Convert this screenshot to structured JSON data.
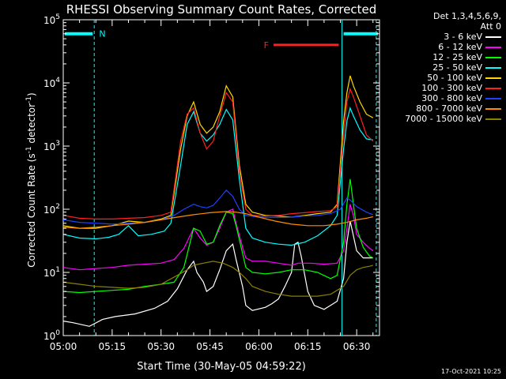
{
  "chart_data": {
    "type": "line",
    "title": "RHESSI Observing Summary Count Rates, Corrected",
    "xlabel": "Start Time (30-May-05 04:59:22)",
    "ylabel": "Corrected Count Rate (s-1 detector-1)",
    "ylabel_parts": {
      "base": "Corrected Count Rate (s",
      "e1": "-1",
      "mid": " detector",
      "e2": "-1",
      "end": ")"
    },
    "y_scale": "log",
    "ylim": [
      1,
      100000
    ],
    "y_ticks": [
      {
        "value": 1,
        "base": "10",
        "exp": "0"
      },
      {
        "value": 10,
        "base": "10",
        "exp": "1"
      },
      {
        "value": 100,
        "base": "10",
        "exp": "2"
      },
      {
        "value": 1000,
        "base": "10",
        "exp": "3"
      },
      {
        "value": 10000,
        "base": "10",
        "exp": "4"
      },
      {
        "value": 100000,
        "base": "10",
        "exp": "5"
      }
    ],
    "xlim_minutes": [
      0,
      97
    ],
    "x_ticks": [
      {
        "label": "05:00",
        "min": 0
      },
      {
        "label": "05:15",
        "min": 15
      },
      {
        "label": "05:30",
        "min": 30
      },
      {
        "label": "05:45",
        "min": 45
      },
      {
        "label": "06:00",
        "min": 60
      },
      {
        "label": "06:15",
        "min": 75
      },
      {
        "label": "06:30",
        "min": 90
      }
    ],
    "legend_header": [
      "Det 1,3,4,5,6,9,",
      "Att 0"
    ],
    "series": [
      {
        "name": "3 - 6 keV",
        "color": "#ffffff",
        "points": [
          [
            0,
            1.7
          ],
          [
            3,
            1.6
          ],
          [
            8,
            1.4
          ],
          [
            12,
            1.8
          ],
          [
            16,
            2.0
          ],
          [
            22,
            2.2
          ],
          [
            28,
            2.7
          ],
          [
            32,
            3.5
          ],
          [
            35,
            5.5
          ],
          [
            38,
            11
          ],
          [
            40,
            15
          ],
          [
            41,
            10
          ],
          [
            43,
            7
          ],
          [
            44,
            5
          ],
          [
            46,
            6
          ],
          [
            48,
            11
          ],
          [
            50,
            22
          ],
          [
            52,
            28
          ],
          [
            53,
            16
          ],
          [
            55,
            6
          ],
          [
            56,
            3
          ],
          [
            58,
            2.5
          ],
          [
            62,
            2.8
          ],
          [
            64,
            3.2
          ],
          [
            66,
            3.8
          ],
          [
            68,
            6
          ],
          [
            70,
            10
          ],
          [
            71,
            28
          ],
          [
            72,
            30
          ],
          [
            73,
            18
          ],
          [
            75,
            5
          ],
          [
            77,
            3
          ],
          [
            80,
            2.6
          ],
          [
            82,
            3
          ],
          [
            84,
            3.5
          ],
          [
            86,
            8
          ],
          [
            87,
            30
          ],
          [
            88,
            65
          ],
          [
            89,
            38
          ],
          [
            90,
            22
          ],
          [
            92,
            17
          ],
          [
            94,
            17
          ],
          [
            95,
            17
          ]
        ]
      },
      {
        "name": "6 - 12 keV",
        "color": "#ff00ff",
        "points": [
          [
            0,
            12
          ],
          [
            5,
            11
          ],
          [
            10,
            11.5
          ],
          [
            15,
            12
          ],
          [
            20,
            13
          ],
          [
            25,
            13.5
          ],
          [
            30,
            14
          ],
          [
            34,
            16
          ],
          [
            37,
            24
          ],
          [
            40,
            50
          ],
          [
            42,
            35
          ],
          [
            44,
            27
          ],
          [
            46,
            30
          ],
          [
            48,
            50
          ],
          [
            50,
            90
          ],
          [
            52,
            100
          ],
          [
            53,
            60
          ],
          [
            55,
            25
          ],
          [
            56,
            17
          ],
          [
            58,
            15
          ],
          [
            62,
            15
          ],
          [
            66,
            14
          ],
          [
            70,
            13
          ],
          [
            72,
            14
          ],
          [
            76,
            14
          ],
          [
            80,
            13.5
          ],
          [
            84,
            14
          ],
          [
            86,
            22
          ],
          [
            87,
            50
          ],
          [
            88,
            120
          ],
          [
            89,
            80
          ],
          [
            90,
            40
          ],
          [
            92,
            30
          ],
          [
            94,
            24
          ],
          [
            95,
            22
          ]
        ]
      },
      {
        "name": "12 - 25 keV",
        "color": "#00ff00",
        "points": [
          [
            0,
            5
          ],
          [
            5,
            4.8
          ],
          [
            10,
            5
          ],
          [
            15,
            5.2
          ],
          [
            20,
            5.4
          ],
          [
            25,
            6
          ],
          [
            30,
            6.5
          ],
          [
            34,
            7
          ],
          [
            37,
            12
          ],
          [
            40,
            50
          ],
          [
            42,
            45
          ],
          [
            44,
            28
          ],
          [
            46,
            30
          ],
          [
            48,
            55
          ],
          [
            50,
            90
          ],
          [
            52,
            85
          ],
          [
            53,
            55
          ],
          [
            55,
            20
          ],
          [
            56,
            12
          ],
          [
            58,
            10
          ],
          [
            62,
            9.5
          ],
          [
            66,
            10
          ],
          [
            70,
            11
          ],
          [
            74,
            11
          ],
          [
            78,
            10
          ],
          [
            82,
            8
          ],
          [
            84,
            9
          ],
          [
            86,
            30
          ],
          [
            87,
            120
          ],
          [
            88,
            300
          ],
          [
            89,
            120
          ],
          [
            90,
            50
          ],
          [
            92,
            25
          ],
          [
            94,
            18
          ],
          [
            95,
            17
          ]
        ]
      },
      {
        "name": "25 - 50 keV",
        "color": "#00ffff",
        "points": [
          [
            0,
            40
          ],
          [
            5,
            35
          ],
          [
            10,
            34
          ],
          [
            14,
            36
          ],
          [
            17,
            40
          ],
          [
            20,
            55
          ],
          [
            23,
            38
          ],
          [
            27,
            40
          ],
          [
            31,
            45
          ],
          [
            33,
            60
          ],
          [
            36,
            500
          ],
          [
            38,
            2200
          ],
          [
            40,
            3500
          ],
          [
            42,
            1600
          ],
          [
            44,
            1200
          ],
          [
            46,
            1500
          ],
          [
            48,
            2200
          ],
          [
            50,
            3800
          ],
          [
            52,
            2600
          ],
          [
            54,
            300
          ],
          [
            56,
            50
          ],
          [
            58,
            35
          ],
          [
            62,
            30
          ],
          [
            66,
            28
          ],
          [
            70,
            27
          ],
          [
            74,
            30
          ],
          [
            78,
            38
          ],
          [
            82,
            55
          ],
          [
            84,
            80
          ],
          [
            86,
            900
          ],
          [
            87,
            2500
          ],
          [
            88,
            4000
          ],
          [
            89,
            3000
          ],
          [
            91,
            1800
          ],
          [
            93,
            1300
          ],
          [
            95,
            1250
          ]
        ]
      },
      {
        "name": "50 - 100 keV",
        "color": "#ffd700",
        "points": [
          [
            0,
            55
          ],
          [
            5,
            50
          ],
          [
            10,
            50
          ],
          [
            15,
            55
          ],
          [
            20,
            65
          ],
          [
            25,
            62
          ],
          [
            30,
            70
          ],
          [
            33,
            80
          ],
          [
            36,
            900
          ],
          [
            38,
            3000
          ],
          [
            40,
            5000
          ],
          [
            42,
            2200
          ],
          [
            44,
            1600
          ],
          [
            46,
            2000
          ],
          [
            48,
            3500
          ],
          [
            50,
            9000
          ],
          [
            52,
            6000
          ],
          [
            54,
            500
          ],
          [
            56,
            120
          ],
          [
            58,
            90
          ],
          [
            62,
            80
          ],
          [
            66,
            78
          ],
          [
            70,
            75
          ],
          [
            74,
            80
          ],
          [
            78,
            85
          ],
          [
            82,
            90
          ],
          [
            84,
            120
          ],
          [
            86,
            2500
          ],
          [
            87,
            7000
          ],
          [
            88,
            13000
          ],
          [
            89,
            9000
          ],
          [
            91,
            5000
          ],
          [
            93,
            3200
          ],
          [
            95,
            2800
          ]
        ]
      },
      {
        "name": "100 - 300 keV",
        "color": "#ff2020",
        "points": [
          [
            0,
            80
          ],
          [
            5,
            72
          ],
          [
            10,
            70
          ],
          [
            15,
            70
          ],
          [
            20,
            72
          ],
          [
            25,
            74
          ],
          [
            30,
            80
          ],
          [
            33,
            90
          ],
          [
            36,
            1200
          ],
          [
            38,
            3200
          ],
          [
            40,
            4000
          ],
          [
            42,
            1600
          ],
          [
            44,
            900
          ],
          [
            46,
            1200
          ],
          [
            48,
            3000
          ],
          [
            50,
            7000
          ],
          [
            52,
            5000
          ],
          [
            54,
            400
          ],
          [
            56,
            100
          ],
          [
            58,
            80
          ],
          [
            62,
            78
          ],
          [
            66,
            80
          ],
          [
            70,
            85
          ],
          [
            74,
            88
          ],
          [
            78,
            92
          ],
          [
            82,
            95
          ],
          [
            84,
            110
          ],
          [
            86,
            1500
          ],
          [
            87,
            5000
          ],
          [
            88,
            8000
          ],
          [
            89,
            6000
          ],
          [
            91,
            3000
          ],
          [
            93,
            1500
          ],
          [
            95,
            1200
          ]
        ]
      },
      {
        "name": "300 - 800 keV",
        "color": "#2040ff",
        "points": [
          [
            0,
            68
          ],
          [
            5,
            62
          ],
          [
            10,
            60
          ],
          [
            15,
            58
          ],
          [
            20,
            60
          ],
          [
            25,
            62
          ],
          [
            30,
            68
          ],
          [
            34,
            80
          ],
          [
            37,
            100
          ],
          [
            40,
            120
          ],
          [
            42,
            110
          ],
          [
            44,
            105
          ],
          [
            46,
            115
          ],
          [
            48,
            150
          ],
          [
            50,
            200
          ],
          [
            52,
            160
          ],
          [
            54,
            100
          ],
          [
            56,
            80
          ],
          [
            60,
            75
          ],
          [
            66,
            74
          ],
          [
            70,
            75
          ],
          [
            74,
            78
          ],
          [
            78,
            80
          ],
          [
            82,
            85
          ],
          [
            85,
            100
          ],
          [
            87,
            150
          ],
          [
            88,
            140
          ],
          [
            90,
            110
          ],
          [
            93,
            90
          ],
          [
            95,
            82
          ]
        ]
      },
      {
        "name": "800 - 7000 keV",
        "color": "#ff8c00",
        "points": [
          [
            0,
            52
          ],
          [
            5,
            50
          ],
          [
            10,
            52
          ],
          [
            15,
            55
          ],
          [
            20,
            58
          ],
          [
            25,
            62
          ],
          [
            30,
            68
          ],
          [
            35,
            75
          ],
          [
            40,
            82
          ],
          [
            45,
            88
          ],
          [
            50,
            92
          ],
          [
            53,
            90
          ],
          [
            56,
            85
          ],
          [
            60,
            75
          ],
          [
            65,
            65
          ],
          [
            70,
            58
          ],
          [
            75,
            55
          ],
          [
            80,
            55
          ],
          [
            84,
            58
          ],
          [
            87,
            62
          ],
          [
            90,
            68
          ],
          [
            93,
            72
          ],
          [
            95,
            76
          ]
        ]
      },
      {
        "name": "7000 - 15000 keV",
        "color": "#8b8000",
        "points": [
          [
            0,
            7
          ],
          [
            5,
            6.5
          ],
          [
            10,
            6
          ],
          [
            15,
            5.8
          ],
          [
            20,
            5.6
          ],
          [
            25,
            5.8
          ],
          [
            30,
            6.5
          ],
          [
            35,
            9
          ],
          [
            38,
            11
          ],
          [
            40,
            13
          ],
          [
            43,
            14
          ],
          [
            46,
            15
          ],
          [
            49,
            14
          ],
          [
            52,
            12
          ],
          [
            54,
            10
          ],
          [
            56,
            8
          ],
          [
            58,
            6
          ],
          [
            62,
            5
          ],
          [
            66,
            4.5
          ],
          [
            70,
            4.2
          ],
          [
            74,
            4.2
          ],
          [
            78,
            4.2
          ],
          [
            82,
            4.5
          ],
          [
            86,
            6
          ],
          [
            88,
            9
          ],
          [
            90,
            11
          ],
          [
            92,
            12
          ],
          [
            94,
            12.5
          ],
          [
            95,
            13
          ]
        ]
      }
    ],
    "annotations": {
      "N": {
        "label": "N",
        "color": "#00ffff"
      },
      "F": {
        "label": "F",
        "color": "#ff2020"
      }
    },
    "vertical_markers": {
      "dashed_color": "#00ffff",
      "solid_color": "#00ffff"
    }
  },
  "footer_date": "17-Oct-2021 10:25"
}
